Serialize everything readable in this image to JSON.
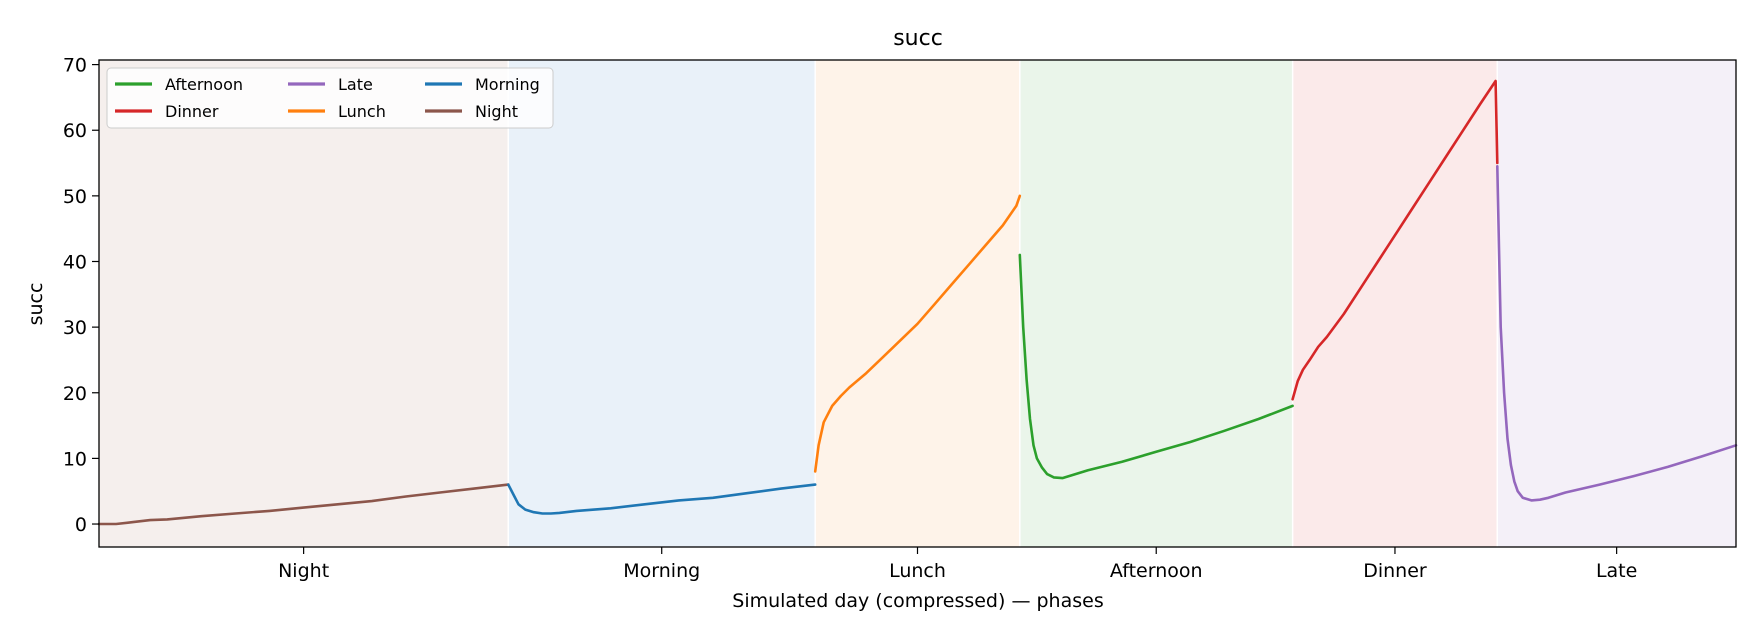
{
  "chart_data": {
    "type": "line",
    "title": "succ",
    "xlabel": "Simulated day (compressed) — phases",
    "ylabel": "succ",
    "ylim": [
      -3.5,
      70.7
    ],
    "yticks": [
      0,
      10,
      20,
      30,
      40,
      50,
      60,
      70
    ],
    "grid": false,
    "legend": {
      "placement": "top-left",
      "columns": 3,
      "entries": [
        {
          "label": "Afternoon",
          "color": "#2ca02c"
        },
        {
          "label": "Late",
          "color": "#9467bd"
        },
        {
          "label": "Morning",
          "color": "#1f77b4"
        },
        {
          "label": "Dinner",
          "color": "#d62728"
        },
        {
          "label": "Lunch",
          "color": "#ff7f0e"
        },
        {
          "label": "Night",
          "color": "#8c564b"
        }
      ]
    },
    "phases": [
      {
        "name": "Night",
        "start": 0,
        "end": 24,
        "color": "#8c564b",
        "band": "#f5efed"
      },
      {
        "name": "Morning",
        "start": 24,
        "end": 42,
        "color": "#1f77b4",
        "band": "#e9f1f9"
      },
      {
        "name": "Lunch",
        "start": 42,
        "end": 54,
        "color": "#ff7f0e",
        "band": "#fef3e9"
      },
      {
        "name": "Afternoon",
        "start": 54,
        "end": 70,
        "color": "#2ca02c",
        "band": "#eaf5ea"
      },
      {
        "name": "Dinner",
        "start": 70,
        "end": 82,
        "color": "#d62728",
        "band": "#fbeaea"
      },
      {
        "name": "Late",
        "start": 82,
        "end": 96,
        "color": "#9467bd",
        "band": "#f4f0f8"
      }
    ],
    "xlim": [
      0,
      96
    ],
    "series": [
      {
        "phase": "Night",
        "color": "#8c564b",
        "x": [
          0,
          1,
          2,
          3,
          4,
          6,
          8,
          10,
          12,
          14,
          16,
          18,
          20,
          22,
          24
        ],
        "y": [
          0,
          0,
          0.3,
          0.6,
          0.7,
          1.2,
          1.6,
          2.0,
          2.5,
          3.0,
          3.5,
          4.2,
          4.8,
          5.4,
          6.0
        ]
      },
      {
        "phase": "Morning",
        "color": "#1f77b4",
        "x": [
          24,
          24.3,
          24.6,
          25,
          25.5,
          26,
          26.5,
          27,
          28,
          30,
          32,
          34,
          36,
          38,
          40,
          42
        ],
        "y": [
          6.0,
          4.5,
          3.0,
          2.2,
          1.8,
          1.6,
          1.6,
          1.7,
          2.0,
          2.4,
          3.0,
          3.6,
          4.0,
          4.7,
          5.4,
          6.0
        ]
      },
      {
        "phase": "Lunch",
        "color": "#ff7f0e",
        "x": [
          42,
          42.2,
          42.5,
          43,
          43.5,
          44,
          45,
          46,
          47,
          48,
          49,
          50,
          51,
          52,
          53,
          53.8,
          54
        ],
        "y": [
          8.0,
          12.0,
          15.5,
          18.0,
          19.5,
          20.8,
          23.0,
          25.5,
          28.0,
          30.5,
          33.5,
          36.5,
          39.5,
          42.5,
          45.5,
          48.5,
          50.0
        ]
      },
      {
        "phase": "Afternoon",
        "color": "#2ca02c",
        "x": [
          54,
          54.2,
          54.4,
          54.6,
          54.8,
          55,
          55.3,
          55.6,
          56,
          56.5,
          57,
          58,
          60,
          62,
          64,
          66,
          68,
          70
        ],
        "y": [
          41.0,
          30.0,
          22.0,
          16.0,
          12.0,
          10.0,
          8.6,
          7.6,
          7.1,
          7.0,
          7.4,
          8.2,
          9.5,
          11.0,
          12.5,
          14.2,
          16.0,
          18.0
        ]
      },
      {
        "phase": "Dinner",
        "color": "#d62728",
        "x": [
          70,
          70.3,
          70.6,
          71,
          71.5,
          72,
          73,
          74,
          75,
          76,
          77,
          78,
          79,
          80,
          81,
          81.9,
          82
        ],
        "y": [
          19.0,
          21.8,
          23.5,
          25.0,
          27.0,
          28.5,
          32.0,
          36.0,
          40.0,
          44.0,
          48.0,
          52.0,
          56.0,
          60.0,
          64.0,
          67.5,
          55.0
        ]
      },
      {
        "phase": "Late",
        "color": "#9467bd",
        "x": [
          82,
          82.1,
          82.2,
          82.4,
          82.6,
          82.8,
          83,
          83.2,
          83.5,
          84,
          84.5,
          85,
          86,
          88,
          90,
          92,
          94,
          96
        ],
        "y": [
          54.5,
          42.0,
          30.0,
          20.0,
          13.0,
          9.0,
          6.5,
          5.0,
          4.0,
          3.6,
          3.7,
          4.0,
          4.8,
          6.0,
          7.3,
          8.7,
          10.3,
          12.0
        ]
      }
    ]
  }
}
